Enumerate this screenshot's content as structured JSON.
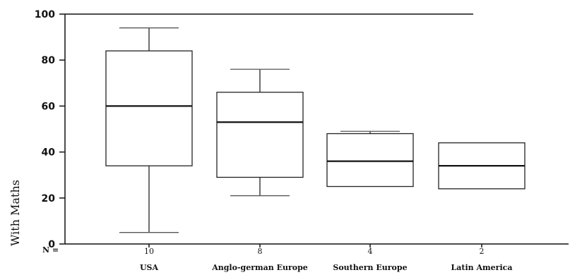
{
  "chart_data": {
    "type": "box",
    "ylabel": "With Maths",
    "ylim": [
      0,
      100
    ],
    "yticks": [
      0,
      20,
      40,
      60,
      80,
      100
    ],
    "n_label": "N =",
    "categories": [
      {
        "name": "USA",
        "n": "10",
        "min": 5,
        "q1": 34,
        "median": 60,
        "q3": 84,
        "max": 94
      },
      {
        "name": "Anglo-german Europe",
        "n": "8",
        "min": 21,
        "q1": 29,
        "median": 53,
        "q3": 66,
        "max": 76
      },
      {
        "name": "Southern Europe",
        "n": "4",
        "min": 25,
        "q1": 25,
        "median": 36,
        "q3": 48,
        "max": 49
      },
      {
        "name": "Latin America",
        "n": "2",
        "min": 24,
        "q1": 24,
        "median": 34,
        "q3": 44,
        "max": 44
      }
    ],
    "grid": false,
    "colors": {
      "stroke": "#222222",
      "background": "#ffffff"
    }
  }
}
